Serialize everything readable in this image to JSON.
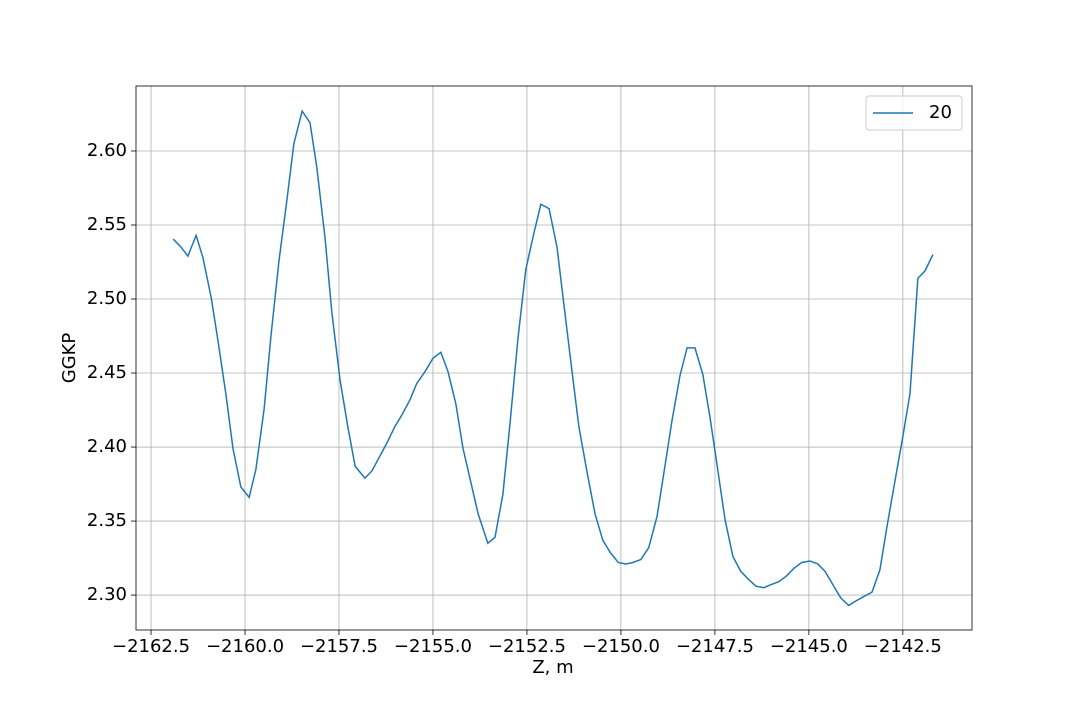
{
  "chart_data": {
    "type": "line",
    "xlabel": "Z, m",
    "ylabel": "GGKP",
    "x": [
      -2161.91,
      -2161.7,
      -2161.52,
      -2161.3,
      -2161.12,
      -2160.9,
      -2160.72,
      -2160.51,
      -2160.32,
      -2160.11,
      -2159.89,
      -2159.71,
      -2159.49,
      -2159.31,
      -2159.1,
      -2158.88,
      -2158.7,
      -2158.48,
      -2158.27,
      -2158.09,
      -2157.87,
      -2157.69,
      -2157.47,
      -2157.26,
      -2157.07,
      -2156.81,
      -2156.62,
      -2156.41,
      -2156.22,
      -2156.01,
      -2155.82,
      -2155.61,
      -2155.43,
      -2155.21,
      -2155.0,
      -2154.79,
      -2154.6,
      -2154.39,
      -2154.2,
      -2153.99,
      -2153.8,
      -2153.54,
      -2153.35,
      -2153.14,
      -2152.95,
      -2152.74,
      -2152.53,
      -2152.31,
      -2152.13,
      -2151.91,
      -2151.7,
      -2151.52,
      -2151.3,
      -2151.12,
      -2150.9,
      -2150.69,
      -2150.48,
      -2150.29,
      -2150.07,
      -2149.87,
      -2149.68,
      -2149.47,
      -2149.26,
      -2149.04,
      -2148.86,
      -2148.64,
      -2148.43,
      -2148.24,
      -2148.03,
      -2147.82,
      -2147.63,
      -2147.42,
      -2147.23,
      -2147.02,
      -2146.81,
      -2146.62,
      -2146.41,
      -2146.2,
      -2146.01,
      -2145.8,
      -2145.59,
      -2145.4,
      -2145.19,
      -2144.97,
      -2144.76,
      -2144.57,
      -2144.36,
      -2144.15,
      -2143.94,
      -2143.75,
      -2143.54,
      -2143.32,
      -2143.11,
      -2142.93,
      -2142.71,
      -2142.5,
      -2142.31,
      -2142.1,
      -2141.91,
      -2141.7
    ],
    "series": [
      {
        "name": "20",
        "color": "#1f77b4",
        "values": [
          2.5405,
          2.535,
          2.529,
          2.543,
          2.528,
          2.501,
          2.472,
          2.436,
          2.399,
          2.373,
          2.366,
          2.385,
          2.426,
          2.475,
          2.525,
          2.568,
          2.605,
          2.627,
          2.619,
          2.589,
          2.541,
          2.491,
          2.445,
          2.413,
          2.387,
          2.379,
          2.384,
          2.394,
          2.403,
          2.414,
          2.422,
          2.432,
          2.443,
          2.451,
          2.46,
          2.464,
          2.451,
          2.429,
          2.399,
          2.376,
          2.355,
          2.335,
          2.339,
          2.368,
          2.416,
          2.473,
          2.52,
          2.545,
          2.564,
          2.561,
          2.535,
          2.497,
          2.451,
          2.414,
          2.383,
          2.355,
          2.337,
          2.329,
          2.322,
          2.321,
          2.322,
          2.324,
          2.332,
          2.353,
          2.382,
          2.418,
          2.448,
          2.467,
          2.467,
          2.449,
          2.42,
          2.384,
          2.351,
          2.326,
          2.316,
          2.311,
          2.306,
          2.305,
          2.307,
          2.309,
          2.313,
          2.318,
          2.322,
          2.323,
          2.321,
          2.316,
          2.307,
          2.298,
          2.293,
          2.296,
          2.299,
          2.302,
          2.317,
          2.345,
          2.377,
          2.407,
          2.436,
          2.514,
          2.519,
          2.53
        ]
      }
    ],
    "xlim": [
      -2162.9,
      -2140.66
    ],
    "ylim": [
      2.2764,
      2.6439
    ],
    "xticks": [
      {
        "value": -2162.5,
        "label": "−2162.5"
      },
      {
        "value": -2160,
        "label": "−2160.0"
      },
      {
        "value": -2157.5,
        "label": "−2157.5"
      },
      {
        "value": -2155,
        "label": "−2155.0"
      },
      {
        "value": -2152.5,
        "label": "−2152.5"
      },
      {
        "value": -2150,
        "label": "−2150.0"
      },
      {
        "value": -2147.5,
        "label": "−2147.5"
      },
      {
        "value": -2145,
        "label": "−2145.0"
      },
      {
        "value": -2142.5,
        "label": "−2142.5"
      }
    ],
    "yticks": [
      {
        "value": 2.3,
        "label": "2.30"
      },
      2.35,
      {
        "value": 2.4,
        "label": "2.40"
      },
      2.45,
      {
        "value": 2.5,
        "label": "2.50"
      },
      2.55,
      {
        "value": 2.6,
        "label": "2.60"
      }
    ],
    "grid": true,
    "legend": "upper-right"
  }
}
